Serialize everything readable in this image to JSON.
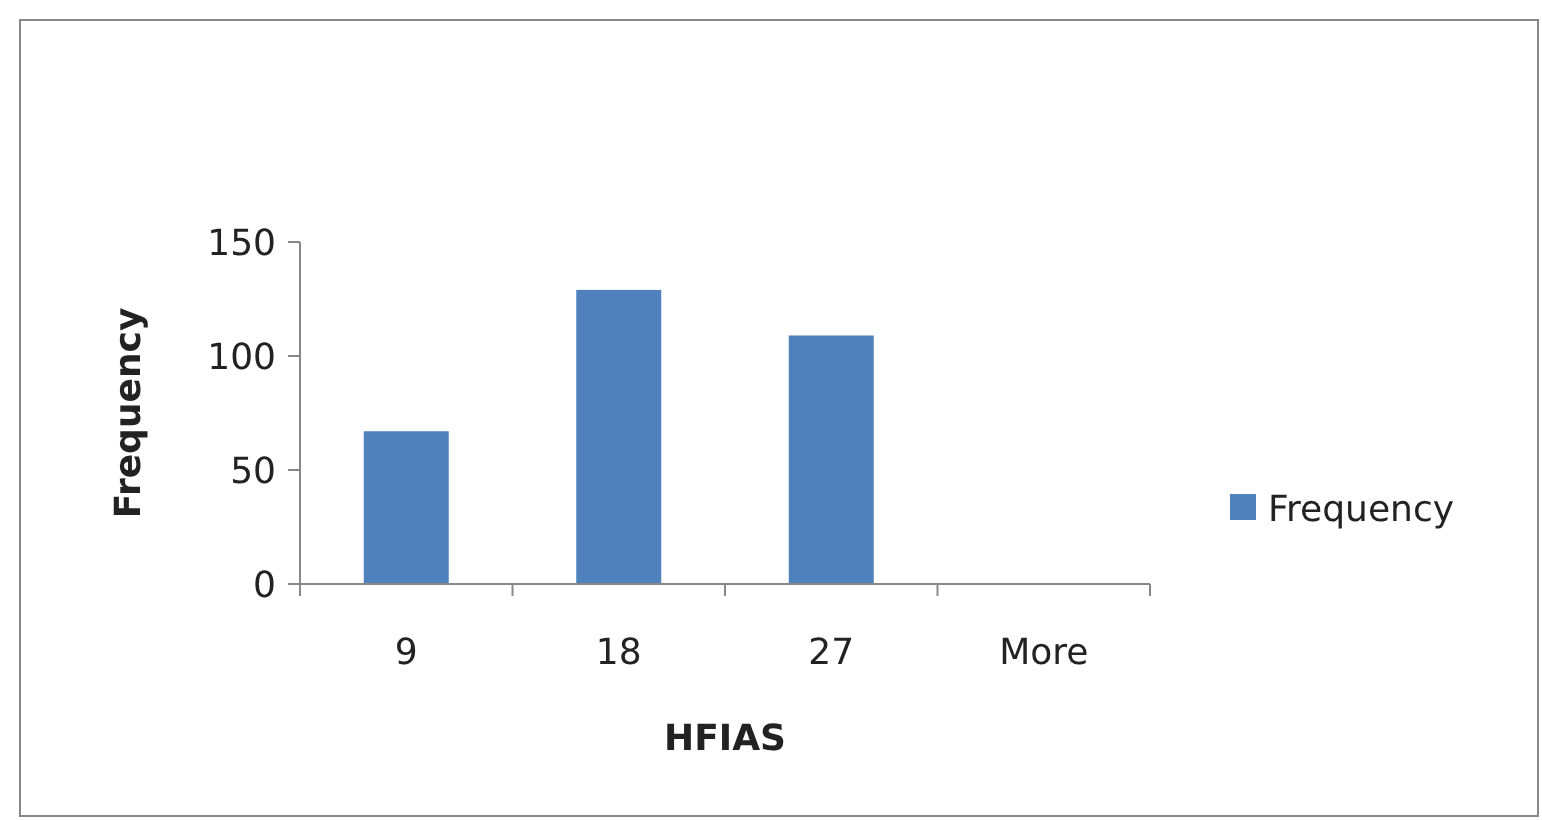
{
  "chart_data": {
    "type": "bar",
    "xlabel": "HFIAS",
    "ylabel": "Frequency",
    "categories": [
      "9",
      "18",
      "27",
      "More"
    ],
    "series": [
      {
        "name": "Frequency",
        "color": "#4f81bd",
        "values": [
          67,
          129,
          109,
          0
        ]
      }
    ],
    "ylim": [
      0,
      150
    ],
    "yticks": [
      0,
      50,
      100,
      150
    ],
    "grid": false,
    "legend": "right"
  }
}
